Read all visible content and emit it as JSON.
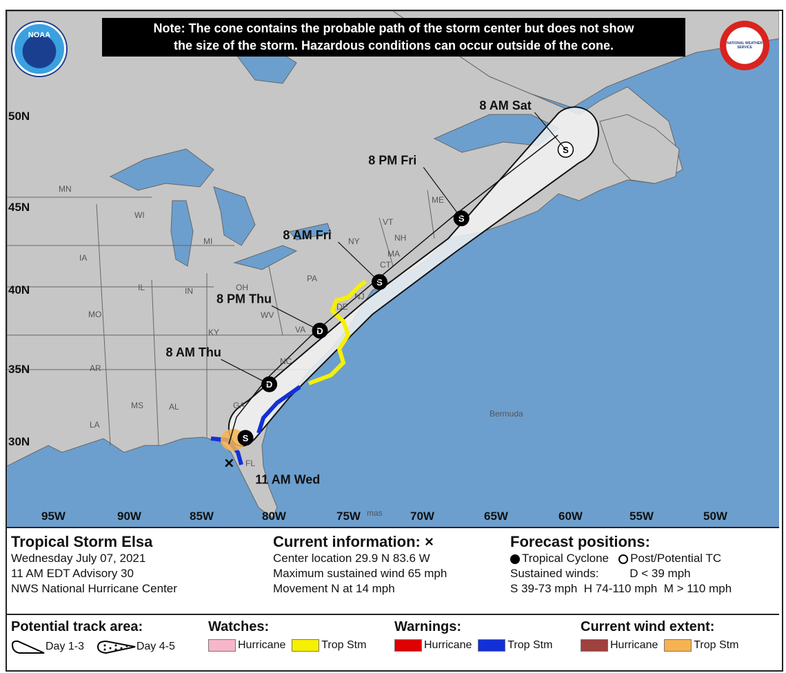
{
  "note": {
    "line1": "Note: The cone contains the probable path of the storm center but does not show",
    "line2": "the size of the storm. Hazardous conditions can occur outside of the cone."
  },
  "logos": {
    "left": "NOAA",
    "right": "NATIONAL WEATHER SERVICE"
  },
  "map": {
    "lat_labels": [
      "50N",
      "45N",
      "40N",
      "35N",
      "30N"
    ],
    "lon_labels": [
      "95W",
      "90W",
      "85W",
      "80W",
      "75W",
      "70W",
      "65W",
      "60W",
      "55W",
      "50W"
    ],
    "states": {
      "mn": "MN",
      "wi": "WI",
      "ia": "IA",
      "il": "IL",
      "in": "IN",
      "mo": "MO",
      "oh": "OH",
      "mi": "MI",
      "pa": "PA",
      "ny": "NY",
      "vt": "VT",
      "nh": "NH",
      "me": "ME",
      "ma": "MA",
      "ct": "CT",
      "wv": "WV",
      "va": "VA",
      "ky": "KY",
      "nc": "NC",
      "ar": "AR",
      "ms": "MS",
      "al": "AL",
      "la": "LA",
      "ga": "GA",
      "fl": "FL",
      "de": "DE",
      "nj": "NJ"
    },
    "bermuda": "Bermuda",
    "bahamas": "mas",
    "colors": {
      "ocean": "#6c9fce",
      "land": "#c6c6c6",
      "lakes": "#6c9fce",
      "cone": "#f2f2f2",
      "trop_watch": "#f6f000",
      "trop_warn": "#1230d8",
      "wind": "#f6b352"
    },
    "forecast_points": [
      {
        "time": "11 AM Wed",
        "symbol": "X",
        "lat": 29.9,
        "lon": -83.6
      },
      {
        "time": "",
        "symbol": "S",
        "lat": 31.4,
        "lon": -82.5
      },
      {
        "time": "8 AM Thu",
        "symbol": "D",
        "lat": 34.6,
        "lon": -80.9
      },
      {
        "time": "8 PM Thu",
        "symbol": "D",
        "lat": 37.8,
        "lon": -77.5
      },
      {
        "time": "8 AM Fri",
        "symbol": "S",
        "lat": 40.7,
        "lon": -73.5
      },
      {
        "time": "8 PM Fri",
        "symbol": "S",
        "lat": 44.5,
        "lon": -68.0
      },
      {
        "time": "8 AM Sat",
        "symbol": "S",
        "lat": 48.6,
        "lon": -61.0
      }
    ]
  },
  "current": {
    "storm_name": "Tropical Storm Elsa",
    "date": "Wednesday July 07, 2021",
    "advisory": "11 AM EDT Advisory 30",
    "center": "NWS National Hurricane Center",
    "heading": "Current information: ×",
    "location": "Center location 29.9 N 83.6 W",
    "wind": "Maximum sustained wind 65 mph",
    "movement": "Movement N at 14 mph"
  },
  "forecast_legend": {
    "heading": "Forecast positions:",
    "tc": "Tropical Cyclone",
    "ptc": "Post/Potential TC",
    "sustained": "Sustained winds:",
    "d": "D < 39 mph",
    "s": "S 39-73 mph",
    "h": "H 74-110 mph",
    "m": "M > 110 mph"
  },
  "legend": {
    "track_head": "Potential track area:",
    "day13": "Day 1-3",
    "day45": "Day 4-5",
    "watches_head": "Watches:",
    "warnings_head": "Warnings:",
    "wind_head": "Current wind extent:",
    "hurricane": "Hurricane",
    "trop": "Trop Stm",
    "colors": {
      "hurricane_watch": "#f7b6c9",
      "trop_watch": "#f6f000",
      "hurricane_warn": "#e00000",
      "trop_warn": "#1230d8",
      "hurricane_wind": "#a0403f",
      "trop_wind": "#f6b352"
    }
  }
}
